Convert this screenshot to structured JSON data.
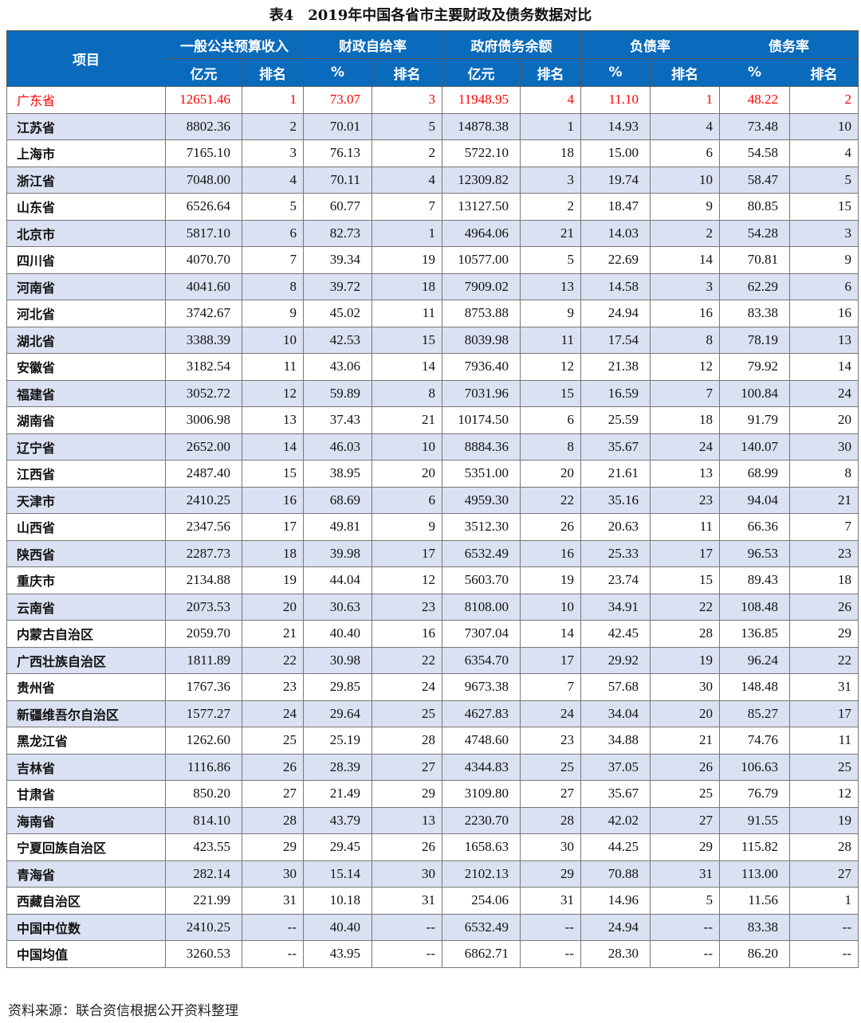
{
  "title": "表4　2019年中国各省市主要财政及债务数据对比",
  "header": {
    "item": "项目",
    "groups": [
      "一般公共预算收入",
      "财政自给率",
      "政府债务余额",
      "负债率",
      "债务率"
    ],
    "subs": [
      "亿元",
      "排名",
      "%",
      "排名",
      "亿元",
      "排名",
      "%",
      "排名",
      "%",
      "排名"
    ]
  },
  "highlight_color": "#ff0000",
  "header_color": "#0a6bbd",
  "stripe_color": "#d9e1f2",
  "rows": [
    [
      "广东省",
      "12651.46",
      "1",
      "73.07",
      "3",
      "11948.95",
      "4",
      "11.10",
      "1",
      "48.22",
      "2"
    ],
    [
      "江苏省",
      "8802.36",
      "2",
      "70.01",
      "5",
      "14878.38",
      "1",
      "14.93",
      "4",
      "73.48",
      "10"
    ],
    [
      "上海市",
      "7165.10",
      "3",
      "76.13",
      "2",
      "5722.10",
      "18",
      "15.00",
      "6",
      "54.58",
      "4"
    ],
    [
      "浙江省",
      "7048.00",
      "4",
      "70.11",
      "4",
      "12309.82",
      "3",
      "19.74",
      "10",
      "58.47",
      "5"
    ],
    [
      "山东省",
      "6526.64",
      "5",
      "60.77",
      "7",
      "13127.50",
      "2",
      "18.47",
      "9",
      "80.85",
      "15"
    ],
    [
      "北京市",
      "5817.10",
      "6",
      "82.73",
      "1",
      "4964.06",
      "21",
      "14.03",
      "2",
      "54.28",
      "3"
    ],
    [
      "四川省",
      "4070.70",
      "7",
      "39.34",
      "19",
      "10577.00",
      "5",
      "22.69",
      "14",
      "70.81",
      "9"
    ],
    [
      "河南省",
      "4041.60",
      "8",
      "39.72",
      "18",
      "7909.02",
      "13",
      "14.58",
      "3",
      "62.29",
      "6"
    ],
    [
      "河北省",
      "3742.67",
      "9",
      "45.02",
      "11",
      "8753.88",
      "9",
      "24.94",
      "16",
      "83.38",
      "16"
    ],
    [
      "湖北省",
      "3388.39",
      "10",
      "42.53",
      "15",
      "8039.98",
      "11",
      "17.54",
      "8",
      "78.19",
      "13"
    ],
    [
      "安徽省",
      "3182.54",
      "11",
      "43.06",
      "14",
      "7936.40",
      "12",
      "21.38",
      "12",
      "79.92",
      "14"
    ],
    [
      "福建省",
      "3052.72",
      "12",
      "59.89",
      "8",
      "7031.96",
      "15",
      "16.59",
      "7",
      "100.84",
      "24"
    ],
    [
      "湖南省",
      "3006.98",
      "13",
      "37.43",
      "21",
      "10174.50",
      "6",
      "25.59",
      "18",
      "91.79",
      "20"
    ],
    [
      "辽宁省",
      "2652.00",
      "14",
      "46.03",
      "10",
      "8884.36",
      "8",
      "35.67",
      "24",
      "140.07",
      "30"
    ],
    [
      "江西省",
      "2487.40",
      "15",
      "38.95",
      "20",
      "5351.00",
      "20",
      "21.61",
      "13",
      "68.99",
      "8"
    ],
    [
      "天津市",
      "2410.25",
      "16",
      "68.69",
      "6",
      "4959.30",
      "22",
      "35.16",
      "23",
      "94.04",
      "21"
    ],
    [
      "山西省",
      "2347.56",
      "17",
      "49.81",
      "9",
      "3512.30",
      "26",
      "20.63",
      "11",
      "66.36",
      "7"
    ],
    [
      "陕西省",
      "2287.73",
      "18",
      "39.98",
      "17",
      "6532.49",
      "16",
      "25.33",
      "17",
      "96.53",
      "23"
    ],
    [
      "重庆市",
      "2134.88",
      "19",
      "44.04",
      "12",
      "5603.70",
      "19",
      "23.74",
      "15",
      "89.43",
      "18"
    ],
    [
      "云南省",
      "2073.53",
      "20",
      "30.63",
      "23",
      "8108.00",
      "10",
      "34.91",
      "22",
      "108.48",
      "26"
    ],
    [
      "内蒙古自治区",
      "2059.70",
      "21",
      "40.40",
      "16",
      "7307.04",
      "14",
      "42.45",
      "28",
      "136.85",
      "29"
    ],
    [
      "广西壮族自治区",
      "1811.89",
      "22",
      "30.98",
      "22",
      "6354.70",
      "17",
      "29.92",
      "19",
      "96.24",
      "22"
    ],
    [
      "贵州省",
      "1767.36",
      "23",
      "29.85",
      "24",
      "9673.38",
      "7",
      "57.68",
      "30",
      "148.48",
      "31"
    ],
    [
      "新疆维吾尔自治区",
      "1577.27",
      "24",
      "29.64",
      "25",
      "4627.83",
      "24",
      "34.04",
      "20",
      "85.27",
      "17"
    ],
    [
      "黑龙江省",
      "1262.60",
      "25",
      "25.19",
      "28",
      "4748.60",
      "23",
      "34.88",
      "21",
      "74.76",
      "11"
    ],
    [
      "吉林省",
      "1116.86",
      "26",
      "28.39",
      "27",
      "4344.83",
      "25",
      "37.05",
      "26",
      "106.63",
      "25"
    ],
    [
      "甘肃省",
      "850.20",
      "27",
      "21.49",
      "29",
      "3109.80",
      "27",
      "35.67",
      "25",
      "76.79",
      "12"
    ],
    [
      "海南省",
      "814.10",
      "28",
      "43.79",
      "13",
      "2230.70",
      "28",
      "42.02",
      "27",
      "91.55",
      "19"
    ],
    [
      "宁夏回族自治区",
      "423.55",
      "29",
      "29.45",
      "26",
      "1658.63",
      "30",
      "44.25",
      "29",
      "115.82",
      "28"
    ],
    [
      "青海省",
      "282.14",
      "30",
      "15.14",
      "30",
      "2102.13",
      "29",
      "70.88",
      "31",
      "113.00",
      "27"
    ],
    [
      "西藏自治区",
      "221.99",
      "31",
      "10.18",
      "31",
      "254.06",
      "31",
      "14.96",
      "5",
      "11.56",
      "1"
    ],
    [
      "中国中位数",
      "2410.25",
      "--",
      "40.40",
      "--",
      "6532.49",
      "--",
      "24.94",
      "--",
      "83.38",
      "--"
    ],
    [
      "中国均值",
      "3260.53",
      "--",
      "43.95",
      "--",
      "6862.71",
      "--",
      "28.30",
      "--",
      "86.20",
      "--"
    ]
  ],
  "source": "资料来源：联合资信根据公开资料整理"
}
